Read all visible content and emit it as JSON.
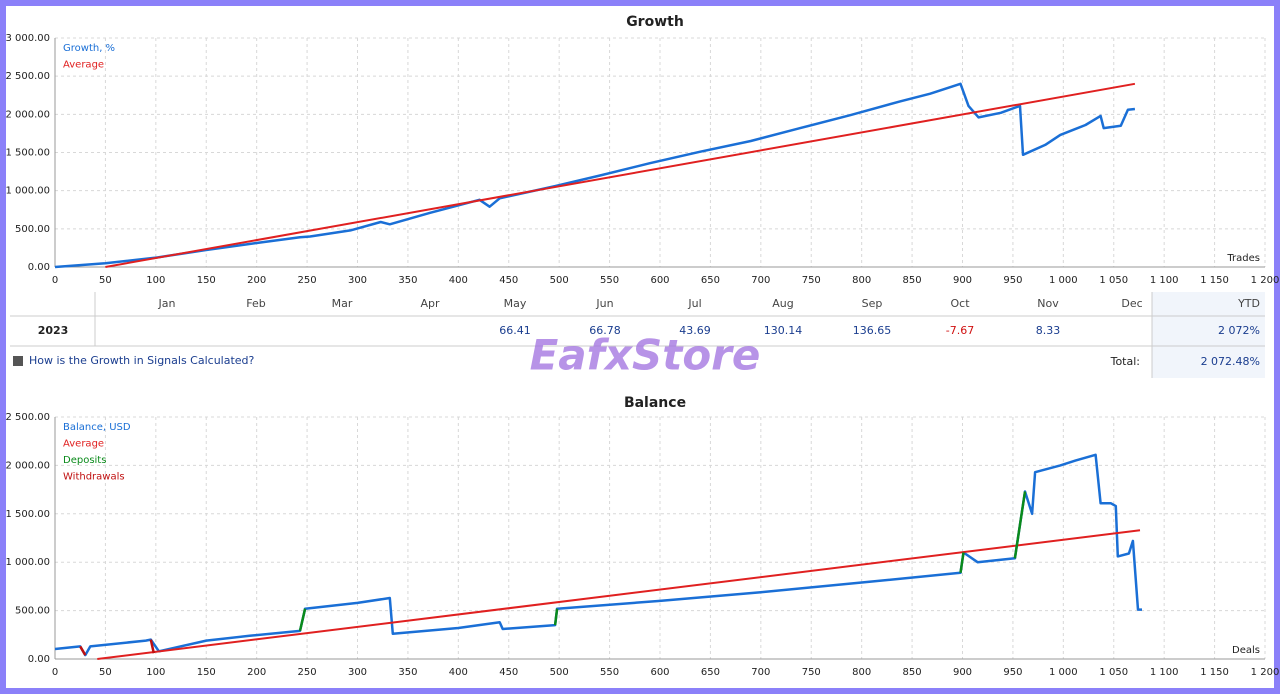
{
  "chart_data": [
    {
      "type": "line",
      "title": "Growth",
      "x_label": "Trades",
      "legend": "upper left",
      "grid": true,
      "xlim": [
        0,
        1200
      ],
      "xticks": [
        0,
        50,
        100,
        150,
        200,
        250,
        300,
        350,
        400,
        450,
        500,
        550,
        600,
        650,
        700,
        750,
        800,
        850,
        900,
        950,
        {
          "value": 1000,
          "label": "1 000"
        },
        {
          "value": 1050,
          "label": "1 050"
        },
        {
          "value": 1100,
          "label": "1 100"
        },
        {
          "value": 1150,
          "label": "1 150"
        },
        {
          "value": 1200,
          "label": "1 200"
        }
      ],
      "ylim": [
        0,
        3000
      ],
      "yticks": [
        {
          "value": 0,
          "label": "0.00"
        },
        {
          "value": 500,
          "label": "500.00"
        },
        {
          "value": 1000,
          "label": "1 000.00"
        },
        {
          "value": 1500,
          "label": "1 500.00"
        },
        {
          "value": 2000,
          "label": "2 000.00"
        },
        {
          "value": 2500,
          "label": "2 500.00"
        },
        {
          "value": 3000,
          "label": "3 000.00"
        }
      ],
      "series": [
        {
          "name": "Growth, %",
          "color": "#1a6fd6",
          "x": [
            0,
            50,
            99,
            149,
            198,
            243,
            253,
            293,
            323,
            332,
            372,
            421,
            431,
            441,
            496,
            541,
            590,
            640,
            690,
            739,
            789,
            838,
            868,
            898,
            906,
            916,
            938,
            957,
            960,
            982,
            997,
            1022,
            1037,
            1040,
            1057,
            1064,
            1071
          ],
          "values": [
            0,
            50,
            120,
            220,
            310,
            390,
            400,
            480,
            590,
            560,
            710,
            880,
            790,
            900,
            1060,
            1200,
            1360,
            1510,
            1650,
            1820,
            1990,
            2170,
            2270,
            2400,
            2110,
            1960,
            2020,
            2110,
            1470,
            1600,
            1730,
            1860,
            1980,
            1820,
            1850,
            2060,
            2070
          ]
        },
        {
          "name": "Average",
          "color": "#e02020",
          "x": [
            50,
            1071
          ],
          "values": [
            0,
            2400
          ]
        }
      ]
    },
    {
      "type": "line",
      "title": "Balance",
      "x_label": "Deals",
      "legend": "upper left",
      "grid": true,
      "xlim": [
        0,
        1200
      ],
      "xticks": [
        0,
        50,
        100,
        150,
        200,
        250,
        300,
        350,
        400,
        450,
        500,
        550,
        600,
        650,
        700,
        750,
        800,
        850,
        900,
        950,
        {
          "value": 1000,
          "label": "1 000"
        },
        {
          "value": 1050,
          "label": "1 050"
        },
        {
          "value": 1100,
          "label": "1 100"
        },
        {
          "value": 1150,
          "label": "1 150"
        },
        {
          "value": 1200,
          "label": "1 200"
        }
      ],
      "ylim": [
        0,
        2500
      ],
      "yticks": [
        {
          "value": 0,
          "label": "0.00"
        },
        {
          "value": 500,
          "label": "500.00"
        },
        {
          "value": 1000,
          "label": "1 000.00"
        },
        {
          "value": 1500,
          "label": "1 500.00"
        },
        {
          "value": 2000,
          "label": "2 000.00"
        },
        {
          "value": 2500,
          "label": "2 500.00"
        }
      ],
      "series": [
        {
          "name": "Balance, USD",
          "color": "#1a6fd6",
          "x": [
            0,
            25,
            30,
            35,
            90,
            95,
            103,
            150,
            193,
            243,
            248,
            300,
            332,
            335,
            400,
            441,
            444,
            496,
            498,
            600,
            700,
            800,
            898,
            901,
            915,
            952,
            962,
            969,
            972,
            997,
            1012,
            1032,
            1037,
            1047,
            1052,
            1054,
            1065,
            1069,
            1074,
            1078
          ],
          "values": [
            103,
            130,
            40,
            130,
            190,
            200,
            80,
            190,
            240,
            290,
            520,
            580,
            630,
            260,
            320,
            380,
            310,
            350,
            520,
            600,
            690,
            790,
            890,
            1100,
            1000,
            1040,
            1730,
            1500,
            1930,
            2000,
            2050,
            2110,
            1610,
            1610,
            1580,
            1060,
            1090,
            1220,
            510,
            510
          ]
        },
        {
          "name": "Average",
          "color": "#e02020",
          "x": [
            42,
            1076
          ],
          "values": [
            0,
            1330
          ]
        },
        {
          "name": "Deposits",
          "color": "#0a8a1a",
          "x": [
            243,
            248,
            null,
            496,
            498,
            null,
            898,
            901,
            null,
            952,
            962
          ],
          "values": [
            290,
            520,
            null,
            350,
            520,
            null,
            890,
            1100,
            null,
            1040,
            1730
          ]
        },
        {
          "name": "Withdrawals",
          "color": "#c01010",
          "x": [
            25,
            30,
            null,
            95,
            98
          ],
          "values": [
            130,
            40,
            null,
            200,
            60
          ]
        }
      ]
    }
  ],
  "table": {
    "headers": [
      "Jan",
      "Feb",
      "Mar",
      "Apr",
      "May",
      "Jun",
      "Jul",
      "Aug",
      "Sep",
      "Oct",
      "Nov",
      "Dec",
      "YTD"
    ],
    "rows": [
      {
        "year": "2023",
        "cells": [
          null,
          null,
          null,
          null,
          "66.41",
          "66.78",
          "43.69",
          "130.14",
          "136.65",
          "-7.67",
          "8.33",
          null
        ],
        "ytd": "2 072%"
      }
    ]
  },
  "link": "How is the Growth in Signals Calculated?",
  "total": {
    "label": "Total:",
    "value": "2 072.48%"
  },
  "watermark": "EafxStore"
}
